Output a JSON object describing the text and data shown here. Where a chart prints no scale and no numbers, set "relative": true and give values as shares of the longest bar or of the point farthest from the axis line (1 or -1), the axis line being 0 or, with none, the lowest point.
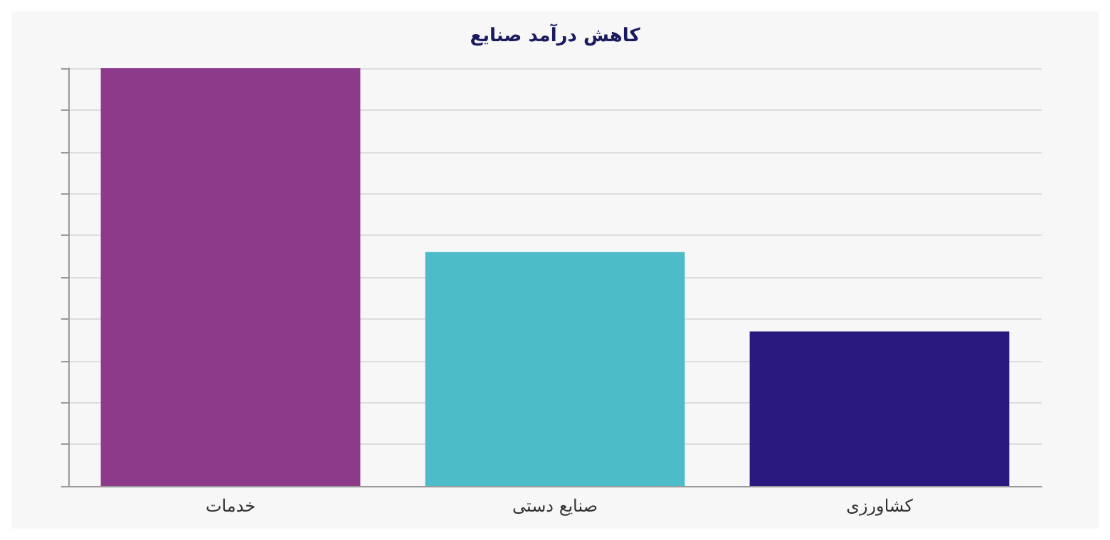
{
  "chart_data": {
    "type": "bar",
    "title": "کاهش درآمد صنایع",
    "categories": [
      "خدمات",
      "صنایع دستی",
      "کشاورزی"
    ],
    "values": [
      1,
      0.56,
      0.37
    ],
    "colors": [
      "#8e3a8a",
      "#4bbcc8",
      "#2a1a80"
    ],
    "relative": true,
    "grid": "y"
  }
}
